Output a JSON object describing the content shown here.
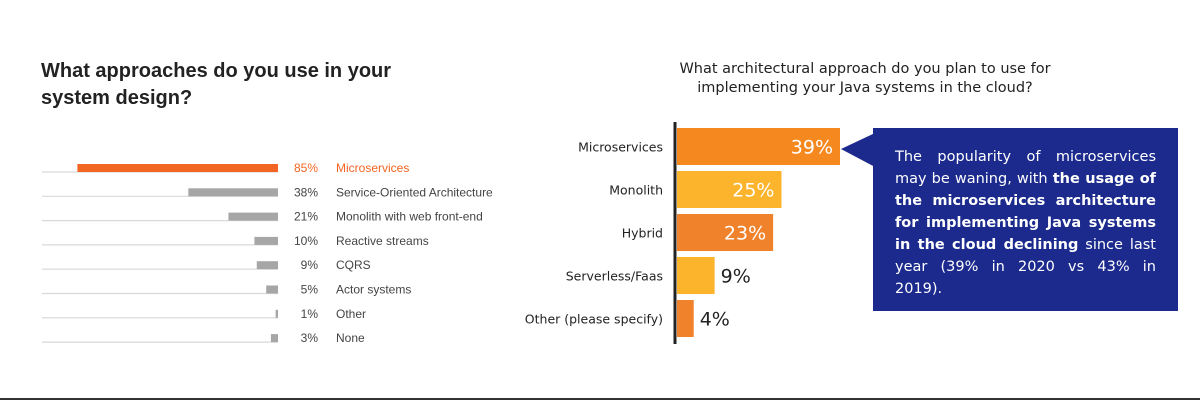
{
  "left": {
    "title": "What approaches do you use in your system design?"
  },
  "right": {
    "title_line1": "What architectural approach do you plan to use for",
    "title_line2": "implementing your Java systems in the cloud?"
  },
  "callout": {
    "text_plain_1": "The popularity of microservices may be waning, with ",
    "text_bold": "the usage of the microservices architecture for implementing Java systems in the cloud declining",
    "text_plain_2": " since last year (39% in 2020 vs 43% in 2019).",
    "background": "#1b2a8c"
  },
  "colors": {
    "accent_orange": "#f26522",
    "bar_gray": "#a6a6a6",
    "line_gray": "#d9d9d9",
    "right_bars": [
      "#f5891f",
      "#fbb42c",
      "#f0822c",
      "#fbb42c",
      "#f0822c"
    ]
  },
  "chart_data": [
    {
      "type": "bar",
      "orientation": "horizontal",
      "title": "What approaches do you use in your system design?",
      "categories": [
        "Microservices",
        "Service-Oriented Architecture",
        "Monolith with web front-end",
        "Reactive streams",
        "CQRS",
        "Actor systems",
        "Other",
        "None"
      ],
      "values": [
        85,
        38,
        21,
        10,
        9,
        5,
        1,
        3
      ],
      "labels": [
        "85%",
        "38%",
        "21%",
        "10%",
        "9%",
        "5%",
        "1%",
        "3%"
      ],
      "xlim": [
        0,
        100
      ],
      "highlight_index": 0
    },
    {
      "type": "bar",
      "orientation": "horizontal",
      "title": "What architectural approach do you plan to use for implementing your Java systems in the cloud?",
      "categories": [
        "Microservices",
        "Monolith",
        "Hybrid",
        "Serverless/Faas",
        "Other (please specify)"
      ],
      "values": [
        39,
        25,
        23,
        9,
        4
      ],
      "labels": [
        "39%",
        "25%",
        "23%",
        "9%",
        "4%"
      ],
      "xlim": [
        0,
        45
      ]
    }
  ]
}
